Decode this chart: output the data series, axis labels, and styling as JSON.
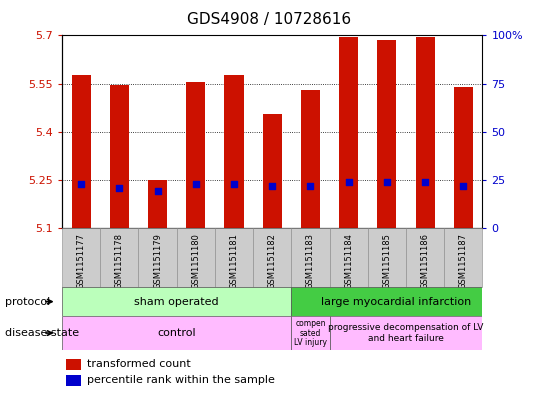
{
  "title": "GDS4908 / 10728616",
  "samples": [
    "GSM1151177",
    "GSM1151178",
    "GSM1151179",
    "GSM1151180",
    "GSM1151181",
    "GSM1151182",
    "GSM1151183",
    "GSM1151184",
    "GSM1151185",
    "GSM1151186",
    "GSM1151187"
  ],
  "bar_values": [
    5.575,
    5.545,
    5.25,
    5.555,
    5.575,
    5.455,
    5.53,
    5.695,
    5.685,
    5.695,
    5.54
  ],
  "percentile_values": [
    23,
    21,
    19,
    23,
    23,
    22,
    22,
    24,
    24,
    24,
    22
  ],
  "ymin": 5.1,
  "ymax": 5.7,
  "yticks": [
    5.1,
    5.25,
    5.4,
    5.55,
    5.7
  ],
  "ytick_labels": [
    "5.1",
    "5.25",
    "5.4",
    "5.55",
    "5.7"
  ],
  "right_yticks": [
    0,
    25,
    50,
    75,
    100
  ],
  "right_ytick_labels": [
    "0",
    "25",
    "50",
    "75",
    "100%"
  ],
  "bar_color": "#cc1100",
  "percentile_color": "#0000cc",
  "sham_color": "#bbffbb",
  "lmi_color": "#44cc44",
  "control_color": "#ffbbff",
  "comp_color": "#ffbbff",
  "prog_color": "#ffbbff",
  "sample_bg_color": "#cccccc",
  "n_sham": 6,
  "n_comp": 1,
  "n_prog": 4
}
